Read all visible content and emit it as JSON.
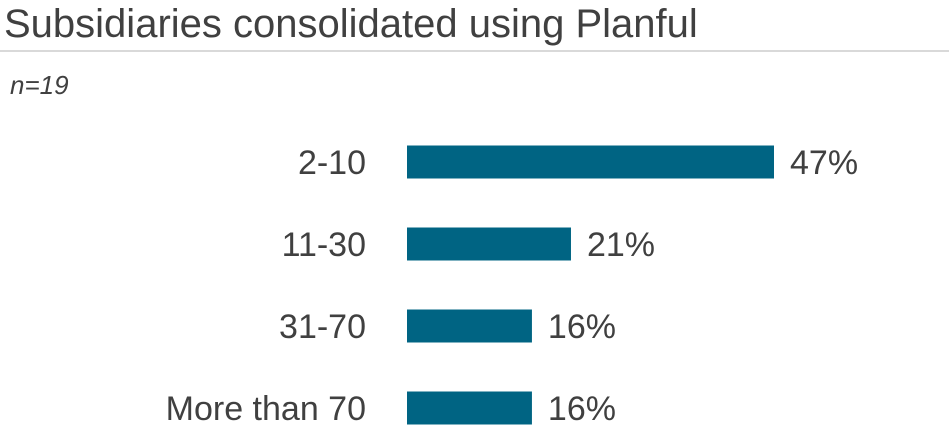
{
  "header": {
    "title": "Subsidiaries consolidated using Planful",
    "sample_size": "n=19"
  },
  "colors": {
    "bar": "#006483",
    "text": "#404040",
    "rule": "#d9d9d9"
  },
  "chart_data": {
    "type": "bar",
    "orientation": "horizontal",
    "title": "Subsidiaries consolidated using Planful",
    "categories": [
      "2-10",
      "11-30",
      "31-70",
      "More than 70"
    ],
    "values": [
      47,
      21,
      16,
      16
    ],
    "value_labels": [
      "47%",
      "21%",
      "16%",
      "16%"
    ],
    "unit": "%",
    "xlim": [
      0,
      47
    ],
    "grid": false,
    "legend": "none"
  }
}
